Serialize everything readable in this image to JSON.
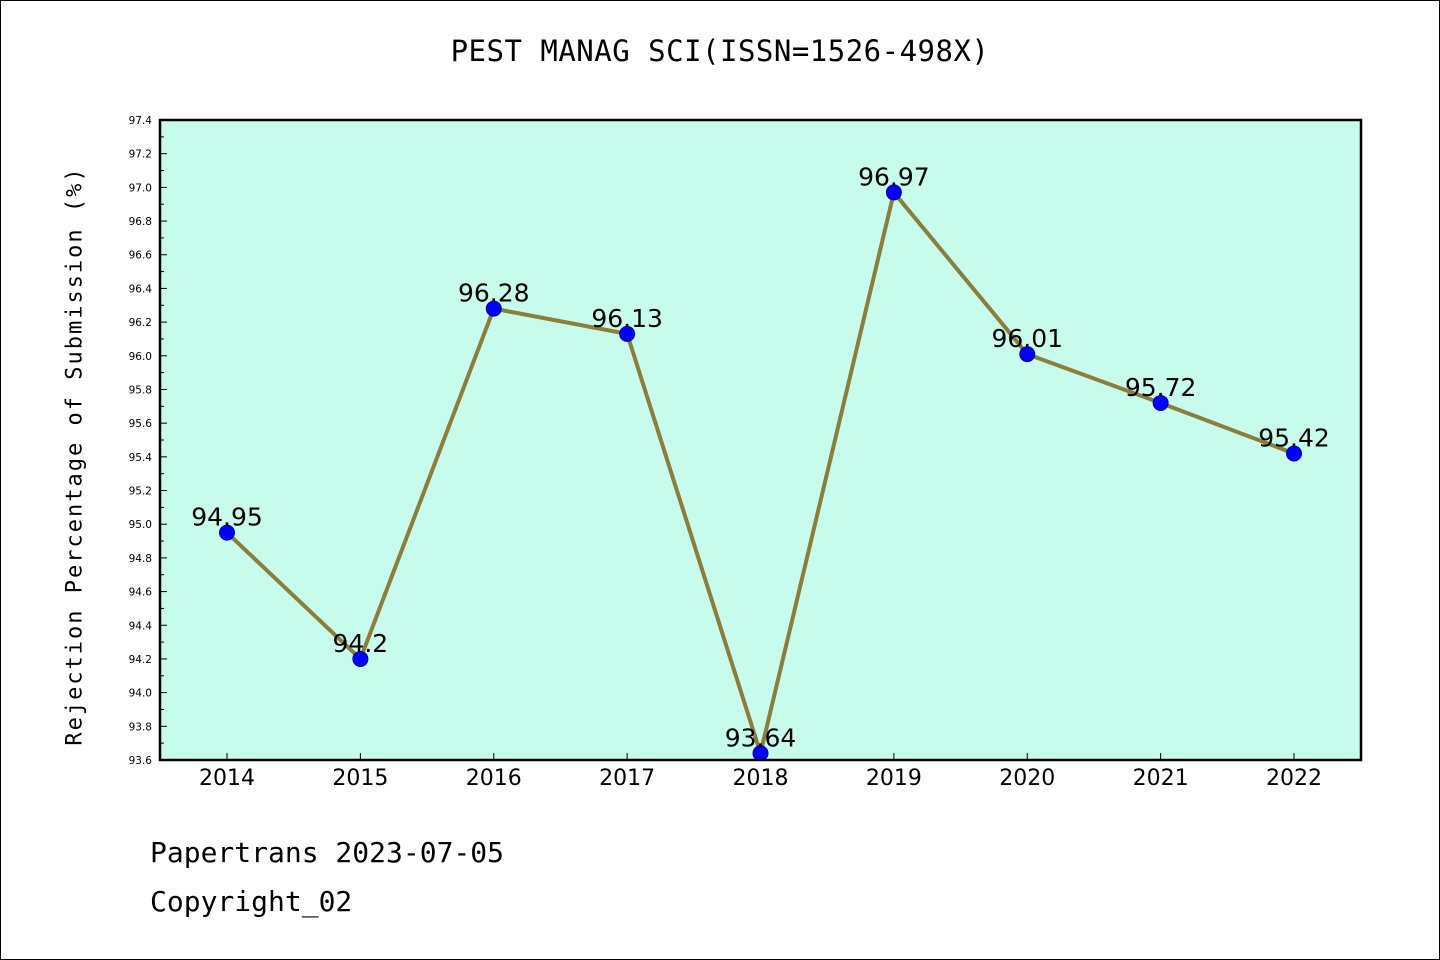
{
  "chart_data": {
    "type": "line",
    "title": "PEST MANAG SCI(ISSN=1526-498X)",
    "ylabel": "Rejection Percentage of Submission (%)",
    "xlabel": "",
    "categories": [
      "2014",
      "2015",
      "2016",
      "2017",
      "2018",
      "2019",
      "2020",
      "2021",
      "2022"
    ],
    "values": [
      94.95,
      94.2,
      96.28,
      96.13,
      93.64,
      96.97,
      96.01,
      95.72,
      95.42
    ],
    "data_labels": [
      "94.95",
      "94.2",
      "96.28",
      "96.13",
      "93.64",
      "96.97",
      "96.01",
      "95.72",
      "95.42"
    ],
    "ylim": [
      93.6,
      97.4
    ],
    "yticks": [
      "93.6",
      "93.8",
      "94.0",
      "94.2",
      "94.4",
      "94.6",
      "94.8",
      "95.0",
      "95.2",
      "95.4",
      "95.6",
      "95.8",
      "96.0",
      "96.2",
      "96.4",
      "96.6",
      "96.8",
      "97.0",
      "97.2",
      "97.4"
    ],
    "grid": false,
    "legend": "none",
    "colors": {
      "plot_background": "#c7fcec",
      "line": "#8b7d3a",
      "marker": "#0000ff"
    }
  },
  "footer": {
    "line1": "Papertrans 2023-07-05",
    "line2": "Copyright_02"
  }
}
